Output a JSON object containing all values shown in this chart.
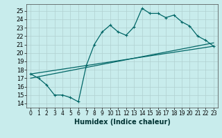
{
  "xlabel": "Humidex (Indice chaleur)",
  "bg_color": "#c8ecec",
  "grid_color": "#b0d0d0",
  "line_color": "#006666",
  "xlim": [
    -0.5,
    23.5
  ],
  "ylim": [
    13.5,
    25.8
  ],
  "xticks": [
    0,
    1,
    2,
    3,
    4,
    5,
    6,
    7,
    8,
    9,
    10,
    11,
    12,
    13,
    14,
    15,
    16,
    17,
    18,
    19,
    20,
    21,
    22,
    23
  ],
  "yticks": [
    14,
    15,
    16,
    17,
    18,
    19,
    20,
    21,
    22,
    23,
    24,
    25
  ],
  "line1_x": [
    0,
    1,
    2,
    3,
    4,
    5,
    6,
    7,
    8,
    9,
    10,
    11,
    12,
    13,
    14,
    15,
    16,
    17,
    18,
    19,
    20,
    21,
    22,
    23
  ],
  "line1_y": [
    17.5,
    17.0,
    16.2,
    15.0,
    15.0,
    14.7,
    14.2,
    18.5,
    21.0,
    22.5,
    23.3,
    22.5,
    22.1,
    23.1,
    25.3,
    24.7,
    24.7,
    24.2,
    24.5,
    23.7,
    23.2,
    22.0,
    21.5,
    20.8
  ],
  "line2_x": [
    0,
    23
  ],
  "line2_y": [
    17.5,
    20.8
  ],
  "line3_x": [
    0,
    23
  ],
  "line3_y": [
    17.0,
    21.2
  ],
  "tick_fontsize": 6,
  "xlabel_fontsize": 7
}
